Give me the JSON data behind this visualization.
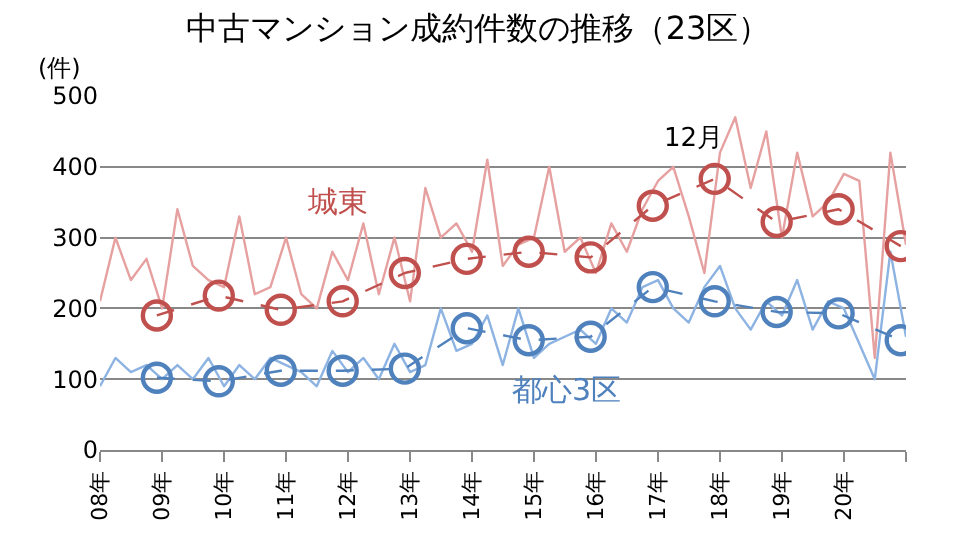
{
  "chart_data": {
    "type": "line",
    "title": "中古マンション成約件数の推移（23区）",
    "ylabel": "(件)",
    "xlim": [
      "2008-01",
      "2021-01"
    ],
    "ylim": [
      0,
      500
    ],
    "yticks": [
      0,
      100,
      200,
      300,
      400,
      500
    ],
    "xticks": [
      {
        "value": "2008-01",
        "label": "08年"
      },
      {
        "value": "2009-01",
        "label": "09年"
      },
      {
        "value": "2010-01",
        "label": "10年"
      },
      {
        "value": "2011-01",
        "label": "11年"
      },
      {
        "value": "2012-01",
        "label": "12年"
      },
      {
        "value": "2013-01",
        "label": "13年"
      },
      {
        "value": "2014-01",
        "label": "14年"
      },
      {
        "value": "2015-01",
        "label": "15年"
      },
      {
        "value": "2016-01",
        "label": "16年"
      },
      {
        "value": "2017-01",
        "label": "17年"
      },
      {
        "value": "2018-01",
        "label": "18年"
      },
      {
        "value": "2019-01",
        "label": "19年"
      },
      {
        "value": "2020-01",
        "label": "20年"
      },
      {
        "value": "2021-01",
        "label": null
      }
    ],
    "grid": "y",
    "series": [
      {
        "color": "#e6a0a0",
        "marker": "none",
        "line_style": "solid",
        "x": [
          "2008-01",
          "2008-04",
          "2008-07",
          "2008-10",
          "2009-01",
          "2009-04",
          "2009-07",
          "2009-10",
          "2010-01",
          "2010-04",
          "2010-07",
          "2010-10",
          "2011-01",
          "2011-04",
          "2011-07",
          "2011-10",
          "2012-01",
          "2012-04",
          "2012-07",
          "2012-10",
          "2013-01",
          "2013-04",
          "2013-07",
          "2013-10",
          "2014-01",
          "2014-04",
          "2014-07",
          "2014-10",
          "2015-01",
          "2015-04",
          "2015-07",
          "2015-10",
          "2016-01",
          "2016-04",
          "2016-07",
          "2016-10",
          "2017-01",
          "2017-04",
          "2017-07",
          "2017-10",
          "2018-01",
          "2018-04",
          "2018-07",
          "2018-10",
          "2019-01",
          "2019-04",
          "2019-07",
          "2019-10",
          "2020-01",
          "2020-04",
          "2020-07",
          "2020-10",
          "2021-01"
        ],
        "values": [
          210,
          300,
          240,
          270,
          200,
          340,
          260,
          240,
          230,
          330,
          220,
          230,
          300,
          220,
          200,
          280,
          240,
          320,
          220,
          300,
          210,
          370,
          300,
          320,
          280,
          410,
          260,
          290,
          300,
          400,
          280,
          300,
          250,
          320,
          280,
          340,
          380,
          400,
          330,
          250,
          420,
          470,
          370,
          450,
          300,
          420,
          330,
          350,
          390,
          380,
          130,
          420,
          290
        ]
      },
      {
        "color": "#8db3e2",
        "marker": "none",
        "line_style": "solid",
        "x": [
          "2008-01",
          "2008-04",
          "2008-07",
          "2008-10",
          "2009-01",
          "2009-04",
          "2009-07",
          "2009-10",
          "2010-01",
          "2010-04",
          "2010-07",
          "2010-10",
          "2011-01",
          "2011-04",
          "2011-07",
          "2011-10",
          "2012-01",
          "2012-04",
          "2012-07",
          "2012-10",
          "2013-01",
          "2013-04",
          "2013-07",
          "2013-10",
          "2014-01",
          "2014-04",
          "2014-07",
          "2014-10",
          "2015-01",
          "2015-04",
          "2015-07",
          "2015-10",
          "2016-01",
          "2016-04",
          "2016-07",
          "2016-10",
          "2017-01",
          "2017-04",
          "2017-07",
          "2017-10",
          "2018-01",
          "2018-04",
          "2018-07",
          "2018-10",
          "2019-01",
          "2019-04",
          "2019-07",
          "2019-10",
          "2020-01",
          "2020-04",
          "2020-07",
          "2020-10",
          "2021-01"
        ],
        "values": [
          90,
          130,
          110,
          120,
          100,
          120,
          100,
          130,
          90,
          120,
          100,
          130,
          120,
          110,
          90,
          140,
          110,
          130,
          100,
          150,
          110,
          120,
          200,
          140,
          150,
          190,
          120,
          200,
          130,
          150,
          160,
          170,
          150,
          200,
          180,
          230,
          240,
          200,
          180,
          230,
          260,
          200,
          170,
          210,
          190,
          240,
          170,
          210,
          200,
          150,
          100,
          280,
          160
        ]
      },
      {
        "color": "#c0504d",
        "marker": "circle",
        "line_style": "dashed",
        "x": [
          "2008-12",
          "2009-12",
          "2010-12",
          "2011-12",
          "2012-12",
          "2013-12",
          "2014-12",
          "2015-12",
          "2016-12",
          "2017-12",
          "2018-12",
          "2019-12",
          "2020-12"
        ],
        "values": [
          190,
          218,
          198,
          210,
          250,
          270,
          280,
          272,
          345,
          383,
          322,
          340,
          288
        ]
      },
      {
        "color": "#4f81bd",
        "marker": "circle",
        "line_style": "dashed",
        "x": [
          "2008-12",
          "2009-12",
          "2010-12",
          "2011-12",
          "2012-12",
          "2013-12",
          "2014-12",
          "2015-12",
          "2016-12",
          "2017-12",
          "2018-12",
          "2019-12",
          "2020-12"
        ],
        "values": [
          102,
          97,
          112,
          112,
          115,
          172,
          155,
          160,
          230,
          210,
          195,
          193,
          155
        ]
      }
    ],
    "annotations": [
      "城東",
      "都心3区",
      "12月"
    ]
  }
}
